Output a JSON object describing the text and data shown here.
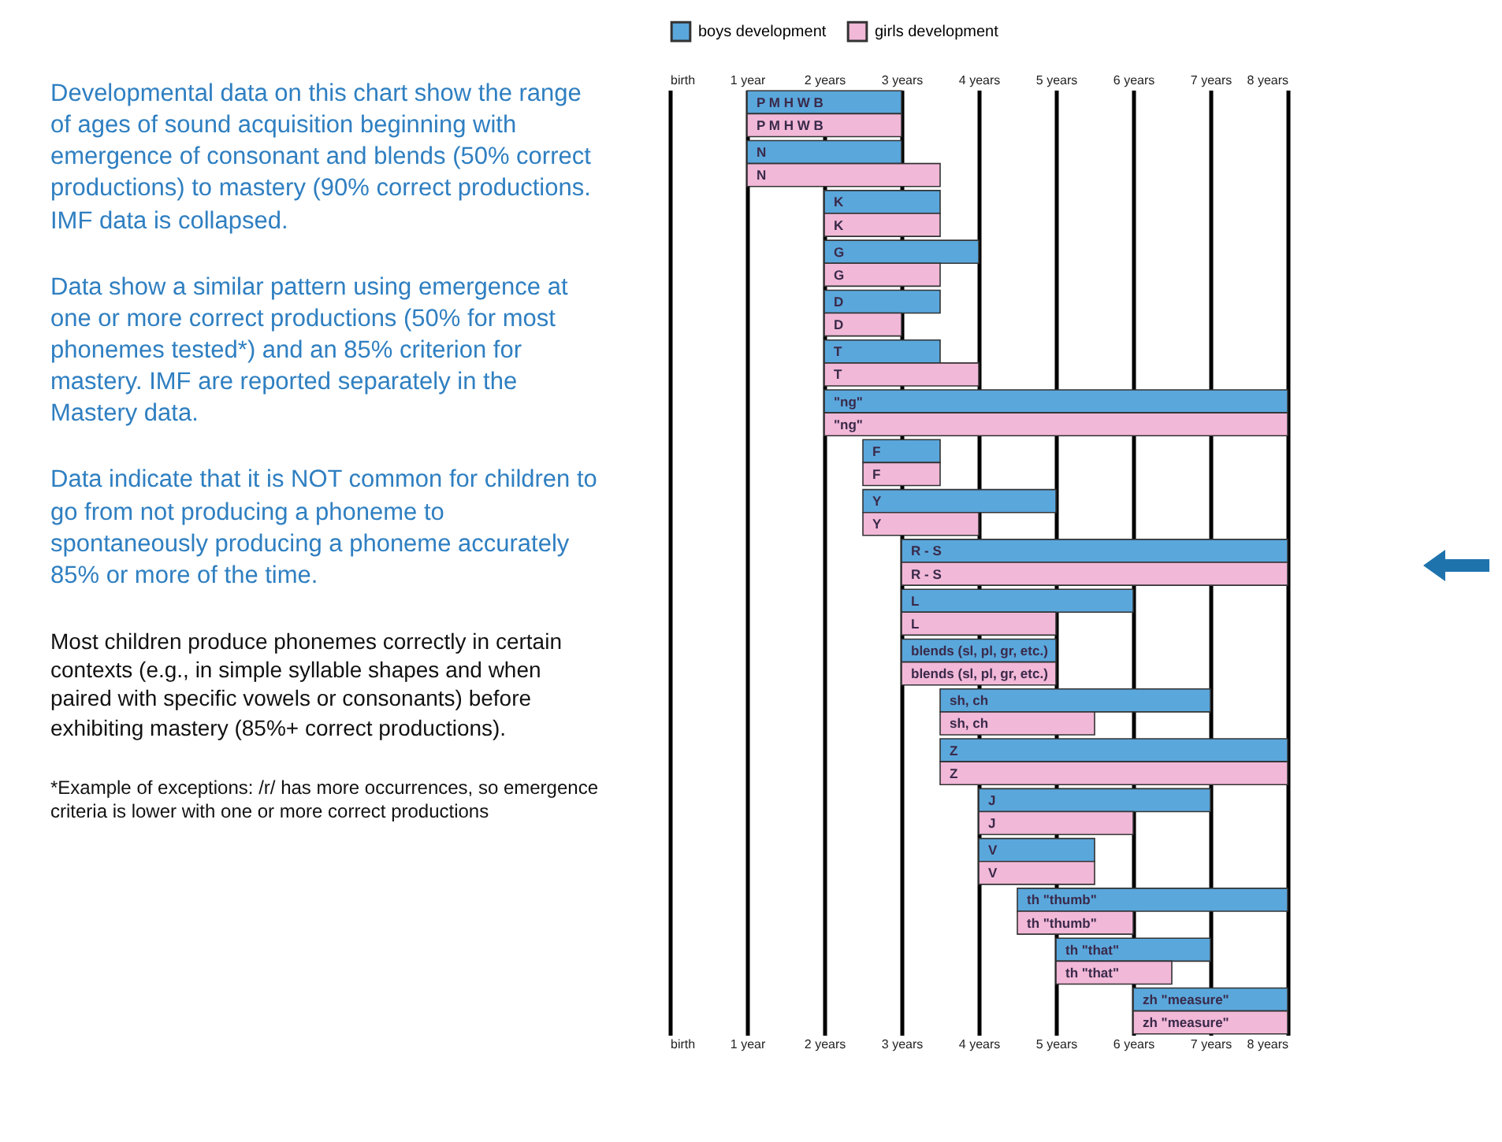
{
  "chart_data": {
    "type": "bar",
    "orientation": "horizontal",
    "categories": [
      "P M H W B",
      "N",
      "K",
      "G",
      "D",
      "T",
      "\"ng\"",
      "F",
      "Y",
      "R - S",
      "L",
      "blends (sl, pl, gr, etc.)",
      "sh, ch",
      "Z",
      "J",
      "V",
      "th \"thumb\"",
      "th \"that\"",
      "zh \"measure\""
    ],
    "series": [
      {
        "name": "boys development",
        "color": "#5aa7dc",
        "base": [
          1,
          1,
          2,
          2,
          2,
          2,
          2,
          2.5,
          2.5,
          3,
          3,
          3,
          3.5,
          3.5,
          4,
          4,
          4.5,
          5,
          6
        ],
        "values": [
          2,
          2,
          1.5,
          2,
          1.5,
          1.5,
          6,
          1,
          2.5,
          5,
          3,
          2,
          3.5,
          4.5,
          3,
          1.5,
          3.5,
          2,
          2
        ]
      },
      {
        "name": "girls development",
        "color": "#f2b8d8",
        "base": [
          1,
          1,
          2,
          2,
          2,
          2,
          2,
          2.5,
          2.5,
          3,
          3,
          3,
          3.5,
          3.5,
          4,
          4,
          4.5,
          5,
          6
        ],
        "values": [
          2,
          2.5,
          1.5,
          1.5,
          1,
          2,
          6,
          1,
          1.5,
          5,
          2,
          2,
          2,
          4.5,
          2,
          1.5,
          1.5,
          1.5,
          2
        ]
      }
    ],
    "xlim": [
      0,
      8
    ],
    "xticks": [
      {
        "value": 0,
        "label": "birth"
      },
      {
        "value": 1,
        "label": "1 year"
      },
      {
        "value": 2,
        "label": "2 years"
      },
      {
        "value": 3,
        "label": "3 years"
      },
      {
        "value": 4,
        "label": "4 years"
      },
      {
        "value": 5,
        "label": "5 years"
      },
      {
        "value": 6,
        "label": "6 years"
      },
      {
        "value": 7,
        "label": "7 years"
      },
      {
        "value": 8,
        "label": "8 years"
      }
    ],
    "x2lim": [
      0,
      8
    ],
    "x2ticks": [
      {
        "value": 0,
        "label": "birth"
      },
      {
        "value": 1,
        "label": "1 year"
      },
      {
        "value": 2,
        "label": "2 years"
      },
      {
        "value": 3,
        "label": "3 years"
      },
      {
        "value": 4,
        "label": "4 years"
      },
      {
        "value": 5,
        "label": "5 years"
      },
      {
        "value": 6,
        "label": "6 years"
      },
      {
        "value": 7,
        "label": "7 years"
      },
      {
        "value": 8,
        "label": "8 years"
      }
    ],
    "grid": "x",
    "legend": "top left",
    "annotations": [
      "Developmental data on this chart show the range of ages of sound acquisition beginning with emergence of consonant and blends (50% correct productions) to mastery (90% correct productions. IMF data is collapsed.",
      "Data show a similar pattern using emergence at one or more correct productions (50% for most phonemes tested*) and an 85% criterion for mastery. IMF are reported separately in the Mastery data.",
      "Data indicate that it is NOT common for children to go from not producing a phoneme to spontaneously producing a phoneme accurately 85% or more of the time.",
      "Most children produce phonemes correctly in certain contexts (e.g., in simple syllable shapes and when paired with specific vowels or consonants) before exhibiting mastery (85%+ correct productions).",
      "*Example of exceptions: /r/ has more occurrences, so emergence criteria is lower with one or more correct productions"
    ]
  }
}
